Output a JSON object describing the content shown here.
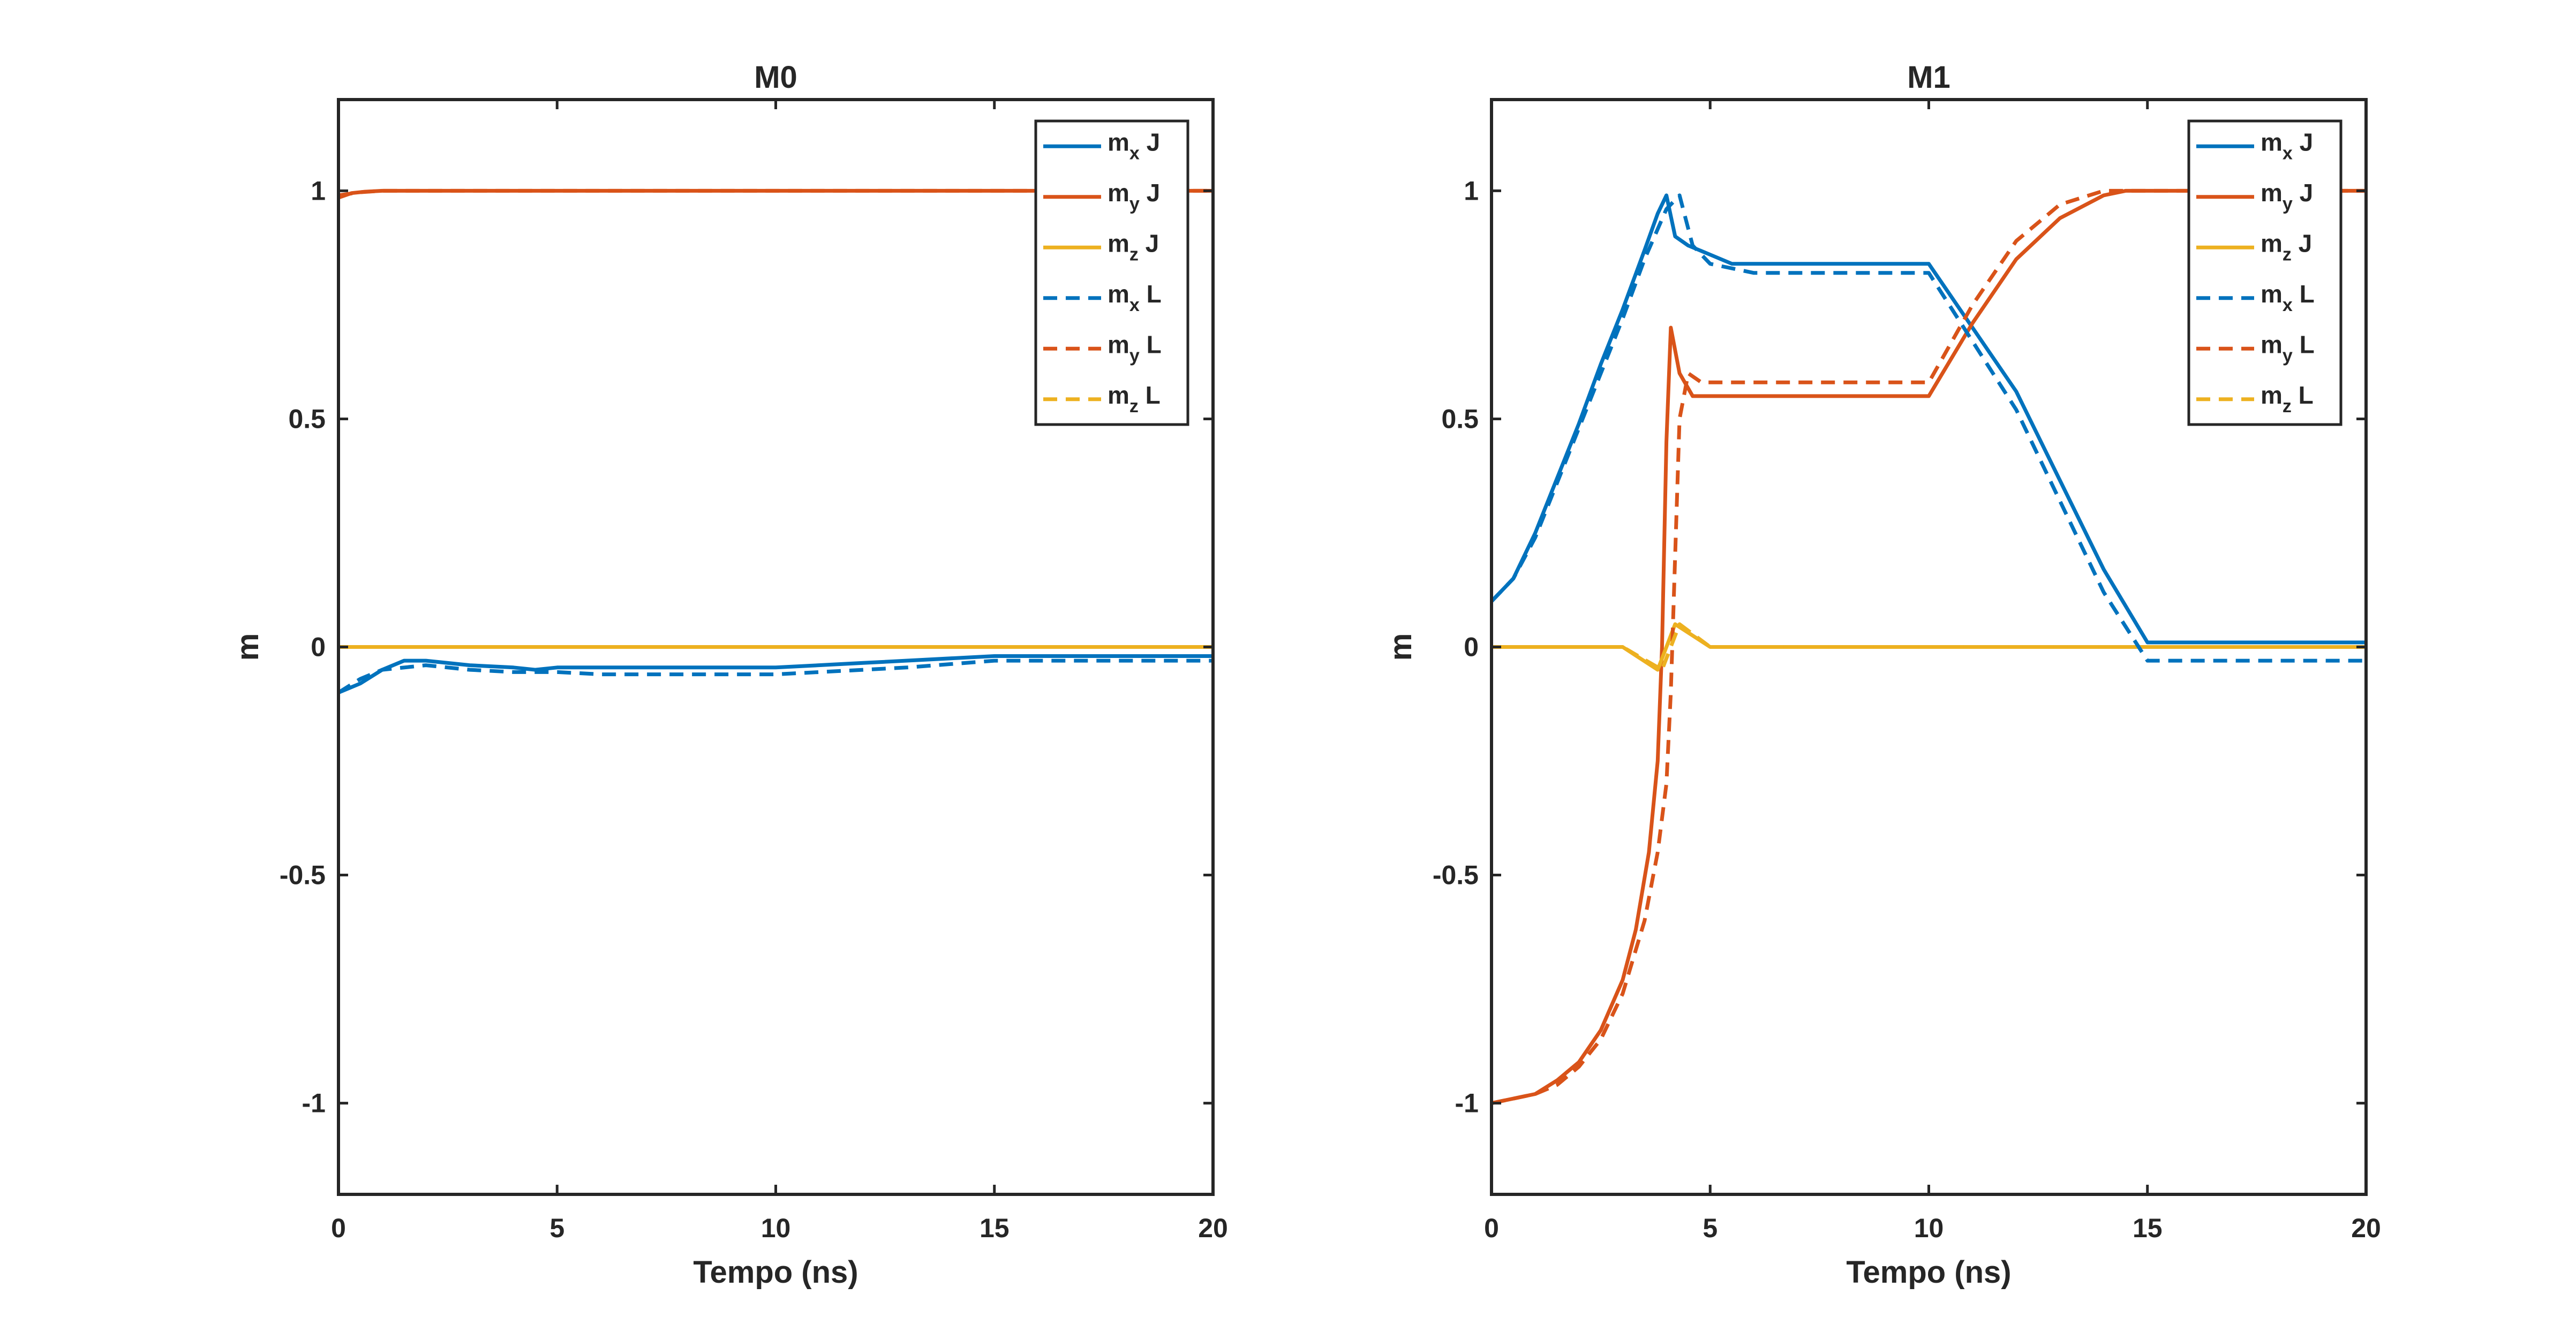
{
  "chart_data": [
    {
      "type": "line",
      "title": "M0",
      "xlabel": "Tempo (ns)",
      "ylabel": "m",
      "xlim": [
        0,
        20
      ],
      "ylim": [
        -1.2,
        1.2
      ],
      "xticks": [
        0,
        5,
        10,
        15,
        20
      ],
      "xtick_labels": [
        "0",
        "5",
        "10",
        "15",
        "20"
      ],
      "yticks": [
        -1,
        -0.5,
        0,
        0.5,
        1
      ],
      "ytick_labels": [
        "-1",
        "-0.5",
        "0",
        "0.5",
        "1"
      ],
      "legend_position": "top-right",
      "series": [
        {
          "name": "m_x J",
          "base": "m",
          "sub": "x",
          "suffix": " J",
          "color": "#0072BD",
          "dash": "solid",
          "x": [
            0,
            0.5,
            1,
            1.5,
            2,
            3,
            4,
            4.5,
            5,
            6,
            8,
            10,
            12,
            15,
            18,
            20
          ],
          "y": [
            -0.1,
            -0.08,
            -0.05,
            -0.03,
            -0.03,
            -0.04,
            -0.045,
            -0.05,
            -0.045,
            -0.045,
            -0.045,
            -0.045,
            -0.035,
            -0.02,
            -0.02,
            -0.02
          ]
        },
        {
          "name": "m_y J",
          "base": "m",
          "sub": "y",
          "suffix": " J",
          "color": "#D95319",
          "dash": "solid",
          "x": [
            0,
            0.3,
            0.6,
            1,
            20
          ],
          "y": [
            0.985,
            0.995,
            0.998,
            1.0,
            1.0
          ]
        },
        {
          "name": "m_z J",
          "base": "m",
          "sub": "z",
          "suffix": " J",
          "color": "#EDB120",
          "dash": "solid",
          "x": [
            0,
            1,
            2,
            3,
            4,
            5,
            10,
            20
          ],
          "y": [
            0,
            0,
            0,
            0,
            0,
            0,
            0,
            0
          ]
        },
        {
          "name": "m_x L",
          "base": "m",
          "sub": "x",
          "suffix": " L",
          "color": "#0072BD",
          "dash": "dashed",
          "x": [
            0,
            0.5,
            1,
            2,
            3,
            4,
            5,
            6,
            8,
            10,
            11,
            13,
            15,
            18,
            20
          ],
          "y": [
            -0.1,
            -0.07,
            -0.05,
            -0.04,
            -0.05,
            -0.055,
            -0.055,
            -0.06,
            -0.06,
            -0.06,
            -0.055,
            -0.045,
            -0.03,
            -0.03,
            -0.03
          ]
        },
        {
          "name": "m_y L",
          "base": "m",
          "sub": "y",
          "suffix": " L",
          "color": "#D95319",
          "dash": "dashed",
          "x": [
            0,
            0.5,
            1,
            20
          ],
          "y": [
            0.99,
            0.997,
            1.0,
            1.0
          ]
        },
        {
          "name": "m_z L",
          "base": "m",
          "sub": "z",
          "suffix": " L",
          "color": "#EDB120",
          "dash": "dashed",
          "x": [
            0,
            20
          ],
          "y": [
            0,
            0
          ]
        }
      ]
    },
    {
      "type": "line",
      "title": "M1",
      "xlabel": "Tempo (ns)",
      "ylabel": "m",
      "xlim": [
        0,
        20
      ],
      "ylim": [
        -1.2,
        1.2
      ],
      "xticks": [
        0,
        5,
        10,
        15,
        20
      ],
      "xtick_labels": [
        "0",
        "5",
        "10",
        "15",
        "20"
      ],
      "yticks": [
        -1,
        -0.5,
        0,
        0.5,
        1
      ],
      "ytick_labels": [
        "-1",
        "-0.5",
        "0",
        "0.5",
        "1"
      ],
      "legend_position": "top-right",
      "series": [
        {
          "name": "m_x J",
          "base": "m",
          "sub": "x",
          "suffix": " J",
          "color": "#0072BD",
          "dash": "solid",
          "x": [
            0,
            0.5,
            1,
            1.5,
            2,
            2.5,
            3,
            3.5,
            3.8,
            4.0,
            4.2,
            4.5,
            5,
            5.5,
            6,
            7,
            8,
            10,
            12,
            14,
            15,
            17,
            20
          ],
          "y": [
            0.1,
            0.15,
            0.25,
            0.37,
            0.49,
            0.62,
            0.74,
            0.87,
            0.95,
            0.99,
            0.9,
            0.88,
            0.86,
            0.84,
            0.84,
            0.84,
            0.84,
            0.84,
            0.56,
            0.17,
            0.01,
            0.01,
            0.01
          ]
        },
        {
          "name": "m_y J",
          "base": "m",
          "sub": "y",
          "suffix": " J",
          "color": "#D95319",
          "dash": "solid",
          "x": [
            0,
            0.5,
            1,
            1.5,
            2,
            2.5,
            3,
            3.3,
            3.6,
            3.8,
            3.9,
            4.0,
            4.1,
            4.3,
            4.6,
            5,
            6,
            8,
            10,
            11,
            12,
            13,
            14,
            14.5,
            15,
            20
          ],
          "y": [
            -1.0,
            -0.99,
            -0.98,
            -0.95,
            -0.91,
            -0.84,
            -0.73,
            -0.62,
            -0.45,
            -0.25,
            0.0,
            0.45,
            0.7,
            0.6,
            0.55,
            0.55,
            0.55,
            0.55,
            0.55,
            0.71,
            0.85,
            0.94,
            0.99,
            1.0,
            1.0,
            1.0
          ]
        },
        {
          "name": "m_z J",
          "base": "m",
          "sub": "z",
          "suffix": " J",
          "color": "#EDB120",
          "dash": "solid",
          "x": [
            0,
            1,
            2,
            3,
            3.8,
            4.2,
            5,
            6,
            10,
            20
          ],
          "y": [
            0,
            0,
            0,
            0,
            -0.05,
            0.05,
            0,
            0,
            0,
            0
          ]
        },
        {
          "name": "m_x L",
          "base": "m",
          "sub": "x",
          "suffix": " L",
          "color": "#0072BD",
          "dash": "dashed",
          "x": [
            0,
            0.5,
            1,
            1.5,
            2,
            2.5,
            3,
            3.5,
            4.0,
            4.3,
            4.6,
            5,
            6,
            8,
            10,
            12,
            14,
            15,
            17,
            20
          ],
          "y": [
            0.1,
            0.15,
            0.24,
            0.36,
            0.48,
            0.6,
            0.72,
            0.85,
            0.96,
            0.99,
            0.88,
            0.84,
            0.82,
            0.82,
            0.82,
            0.52,
            0.12,
            -0.03,
            -0.03,
            -0.03
          ]
        },
        {
          "name": "m_y L",
          "base": "m",
          "sub": "y",
          "suffix": " L",
          "color": "#D95319",
          "dash": "dashed",
          "x": [
            0,
            0.5,
            1,
            1.5,
            2,
            2.5,
            3,
            3.5,
            3.8,
            4.0,
            4.1,
            4.2,
            4.3,
            4.5,
            4.8,
            5,
            6,
            8,
            10,
            11,
            12,
            13,
            14,
            14.5,
            15,
            20
          ],
          "y": [
            -1.0,
            -0.99,
            -0.98,
            -0.96,
            -0.92,
            -0.86,
            -0.76,
            -0.6,
            -0.45,
            -0.3,
            -0.1,
            0.2,
            0.5,
            0.6,
            0.58,
            0.58,
            0.58,
            0.58,
            0.58,
            0.75,
            0.89,
            0.97,
            1.0,
            1.0,
            1.0,
            1.0
          ]
        },
        {
          "name": "m_z L",
          "base": "m",
          "sub": "z",
          "suffix": " L",
          "color": "#EDB120",
          "dash": "dashed",
          "x": [
            0,
            1,
            2,
            3,
            3.9,
            4.3,
            5,
            6,
            10,
            20
          ],
          "y": [
            0,
            0,
            0,
            0,
            -0.05,
            0.05,
            0,
            0,
            0,
            0
          ]
        }
      ]
    }
  ]
}
